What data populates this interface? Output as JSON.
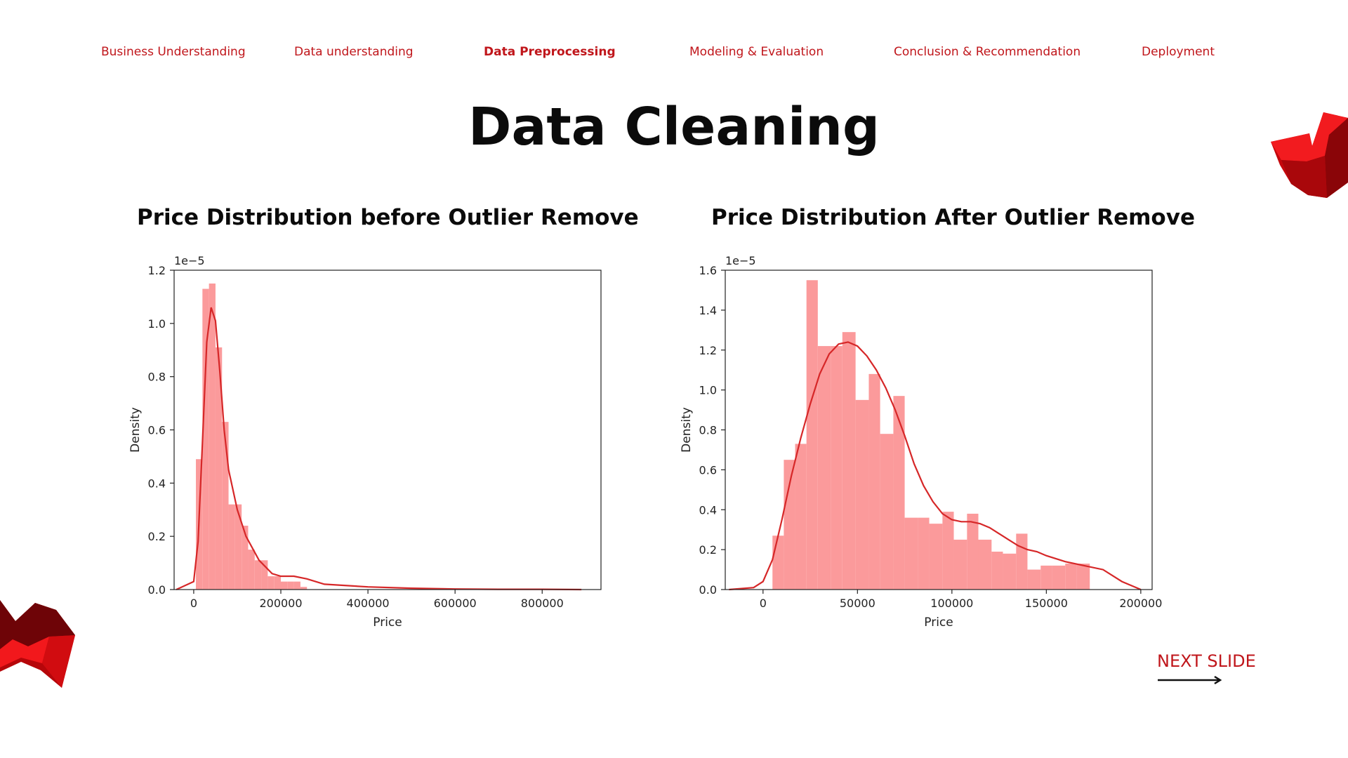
{
  "nav": {
    "items": [
      {
        "label": "Business Understanding",
        "active": false
      },
      {
        "label": "Data understanding",
        "active": false
      },
      {
        "label": "Data Preprocessing",
        "active": true
      },
      {
        "label": "Modeling & Evaluation",
        "active": false
      },
      {
        "label": "Conclusion & Recommendation",
        "active": false
      },
      {
        "label": "Deployment",
        "active": false
      }
    ]
  },
  "title": "Data Cleaning",
  "subtitles": {
    "left": "Price Distribution before Outlier Remove",
    "right": "Price Distribution After Outlier Remove"
  },
  "next_slide": "NEXT SLIDE",
  "colors": {
    "accent": "#c0161b",
    "bar": "#fb9a9b",
    "kde": "#d62728"
  },
  "chart_data": [
    {
      "type": "bar",
      "title": "",
      "xlabel": "Price",
      "ylabel": "Density",
      "offset_text": "1e−5",
      "xlim": [
        -45000,
        935000
      ],
      "ylim": [
        0,
        1.2
      ],
      "xticks": [
        0,
        200000,
        400000,
        600000,
        800000
      ],
      "xtick_labels": [
        "0",
        "200000",
        "400000",
        "600000",
        "800000"
      ],
      "yticks": [
        0.0,
        0.2,
        0.4,
        0.6,
        0.8,
        1.0,
        1.2
      ],
      "ytick_labels": [
        "0.0",
        "0.2",
        "0.4",
        "0.6",
        "0.8",
        "1.0",
        "1.2"
      ],
      "bin_edges": [
        5000,
        20000,
        35000,
        50000,
        65000,
        80000,
        95000,
        110000,
        125000,
        140000,
        155000,
        170000,
        185000,
        200000,
        215000,
        230000,
        245000,
        260000
      ],
      "values": [
        0.49,
        1.13,
        1.15,
        0.91,
        0.63,
        0.32,
        0.32,
        0.24,
        0.15,
        0.11,
        0.11,
        0.05,
        0.05,
        0.03,
        0.03,
        0.03,
        0.01
      ],
      "kde_x": [
        -40000,
        0,
        10000,
        20000,
        30000,
        40000,
        50000,
        60000,
        70000,
        80000,
        100000,
        120000,
        150000,
        180000,
        200000,
        230000,
        260000,
        300000,
        400000,
        500000,
        600000,
        700000,
        800000,
        890000
      ],
      "kde_y": [
        0,
        0.03,
        0.18,
        0.55,
        0.93,
        1.06,
        1.01,
        0.82,
        0.6,
        0.45,
        0.3,
        0.2,
        0.11,
        0.06,
        0.05,
        0.05,
        0.04,
        0.02,
        0.01,
        0.005,
        0.002,
        0.001,
        0.001,
        0
      ]
    },
    {
      "type": "bar",
      "title": "",
      "xlabel": "Price",
      "ylabel": "Density",
      "offset_text": "1e−5",
      "xlim": [
        -20000,
        206000
      ],
      "ylim": [
        0,
        1.6
      ],
      "xticks": [
        0,
        50000,
        100000,
        150000,
        200000
      ],
      "xtick_labels": [
        "0",
        "50000",
        "100000",
        "150000",
        "200000"
      ],
      "yticks": [
        0.0,
        0.2,
        0.4,
        0.6,
        0.8,
        1.0,
        1.2,
        1.4,
        1.6
      ],
      "ytick_labels": [
        "0.0",
        "0.2",
        "0.4",
        "0.6",
        "0.8",
        "1.0",
        "1.2",
        "1.4",
        "1.6"
      ],
      "bin_edges": [
        5000,
        11000,
        17000,
        23000,
        29000,
        36000,
        42000,
        49000,
        56000,
        62000,
        69000,
        75000,
        82000,
        88000,
        95000,
        101000,
        108000,
        114000,
        121000,
        127000,
        134000,
        140000,
        147000,
        153000,
        160000,
        166000,
        173000,
        180000
      ],
      "values": [
        0.27,
        0.65,
        0.73,
        1.55,
        1.22,
        1.22,
        1.29,
        0.95,
        1.08,
        0.78,
        0.97,
        0.36,
        0.36,
        0.33,
        0.39,
        0.25,
        0.38,
        0.25,
        0.19,
        0.18,
        0.28,
        0.1,
        0.12,
        0.12,
        0.13,
        0.13,
        0.0
      ],
      "kde_x": [
        -18000,
        -5000,
        0,
        5000,
        10000,
        15000,
        20000,
        25000,
        30000,
        35000,
        40000,
        45000,
        50000,
        55000,
        60000,
        65000,
        70000,
        75000,
        80000,
        85000,
        90000,
        95000,
        100000,
        105000,
        110000,
        115000,
        120000,
        125000,
        130000,
        135000,
        140000,
        145000,
        150000,
        160000,
        170000,
        180000,
        190000,
        200000
      ],
      "kde_y": [
        0.0,
        0.01,
        0.04,
        0.15,
        0.35,
        0.57,
        0.76,
        0.93,
        1.08,
        1.18,
        1.23,
        1.24,
        1.22,
        1.17,
        1.1,
        1.01,
        0.9,
        0.77,
        0.63,
        0.52,
        0.44,
        0.38,
        0.35,
        0.34,
        0.34,
        0.33,
        0.31,
        0.28,
        0.25,
        0.22,
        0.2,
        0.19,
        0.17,
        0.14,
        0.12,
        0.1,
        0.04,
        0.0
      ]
    }
  ]
}
